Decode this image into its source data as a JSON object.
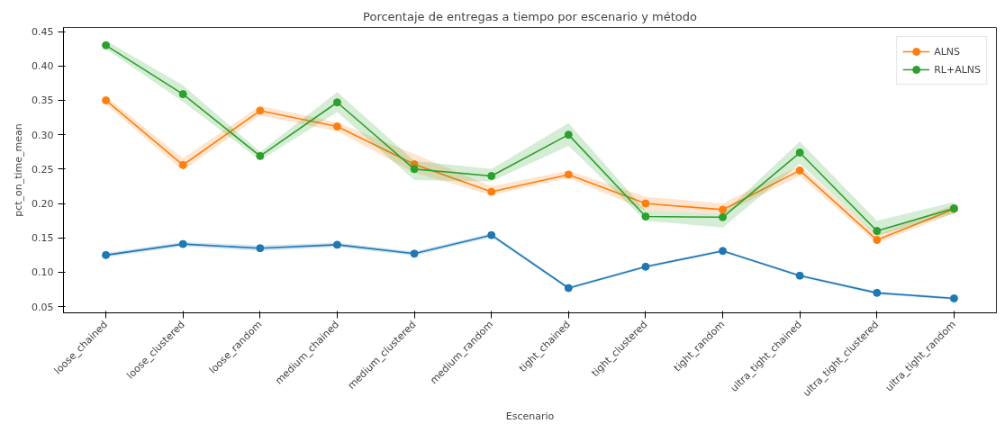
{
  "chart_data": {
    "type": "line",
    "title": "Porcentaje de entregas a tiempo por escenario y método",
    "xlabel": "Escenario",
    "ylabel": "pct_on_time_mean",
    "categories": [
      "loose_chained",
      "loose_clustered",
      "loose_random",
      "medium_chained",
      "medium_clustered",
      "medium_random",
      "tight_chained",
      "tight_clustered",
      "tight_random",
      "ultra_tight_chained",
      "ultra_tight_clustered",
      "ultra_tight_random"
    ],
    "series": [
      {
        "color": "#1f77b4",
        "values": [
          0.125,
          0.141,
          0.135,
          0.14,
          0.127,
          0.154,
          0.077,
          0.108,
          0.131,
          0.095,
          0.07,
          0.062
        ],
        "lower": [
          0.122,
          0.138,
          0.131,
          0.137,
          0.124,
          0.151,
          0.075,
          0.106,
          0.129,
          0.093,
          0.068,
          0.06
        ],
        "upper": [
          0.128,
          0.144,
          0.139,
          0.143,
          0.13,
          0.157,
          0.079,
          0.11,
          0.133,
          0.097,
          0.072,
          0.064
        ]
      },
      {
        "name": "ALNS",
        "color": "#ff7f0e",
        "values": [
          0.35,
          0.256,
          0.335,
          0.312,
          0.257,
          0.217,
          0.242,
          0.2,
          0.191,
          0.248,
          0.147,
          0.192
        ],
        "lower": [
          0.344,
          0.248,
          0.328,
          0.305,
          0.245,
          0.212,
          0.237,
          0.19,
          0.185,
          0.24,
          0.142,
          0.186
        ],
        "upper": [
          0.356,
          0.266,
          0.342,
          0.318,
          0.272,
          0.225,
          0.248,
          0.21,
          0.2,
          0.255,
          0.155,
          0.198
        ]
      },
      {
        "name": "RL+ALNS",
        "color": "#2ca02c",
        "values": [
          0.43,
          0.359,
          0.269,
          0.347,
          0.25,
          0.24,
          0.3,
          0.181,
          0.18,
          0.274,
          0.16,
          0.193
        ],
        "lower": [
          0.425,
          0.348,
          0.263,
          0.333,
          0.234,
          0.232,
          0.284,
          0.175,
          0.165,
          0.258,
          0.153,
          0.185
        ],
        "upper": [
          0.437,
          0.372,
          0.275,
          0.362,
          0.262,
          0.25,
          0.317,
          0.19,
          0.185,
          0.29,
          0.175,
          0.202
        ]
      }
    ],
    "ylim": [
      0.041,
      0.456
    ],
    "yticks": [
      {
        "value": 0.05,
        "label": "0.05"
      },
      {
        "value": 0.1,
        "label": "0.10"
      },
      {
        "value": 0.15,
        "label": "0.15"
      },
      {
        "value": 0.2,
        "label": "0.20"
      },
      {
        "value": 0.25,
        "label": "0.25"
      },
      {
        "value": 0.3,
        "label": "0.30"
      },
      {
        "value": 0.35,
        "label": "0.35"
      },
      {
        "value": 0.4,
        "label": "0.40"
      },
      {
        "value": 0.45,
        "label": "0.45"
      }
    ],
    "grid": false,
    "legend": "top right",
    "marker": "circle",
    "line_style": "solid"
  }
}
